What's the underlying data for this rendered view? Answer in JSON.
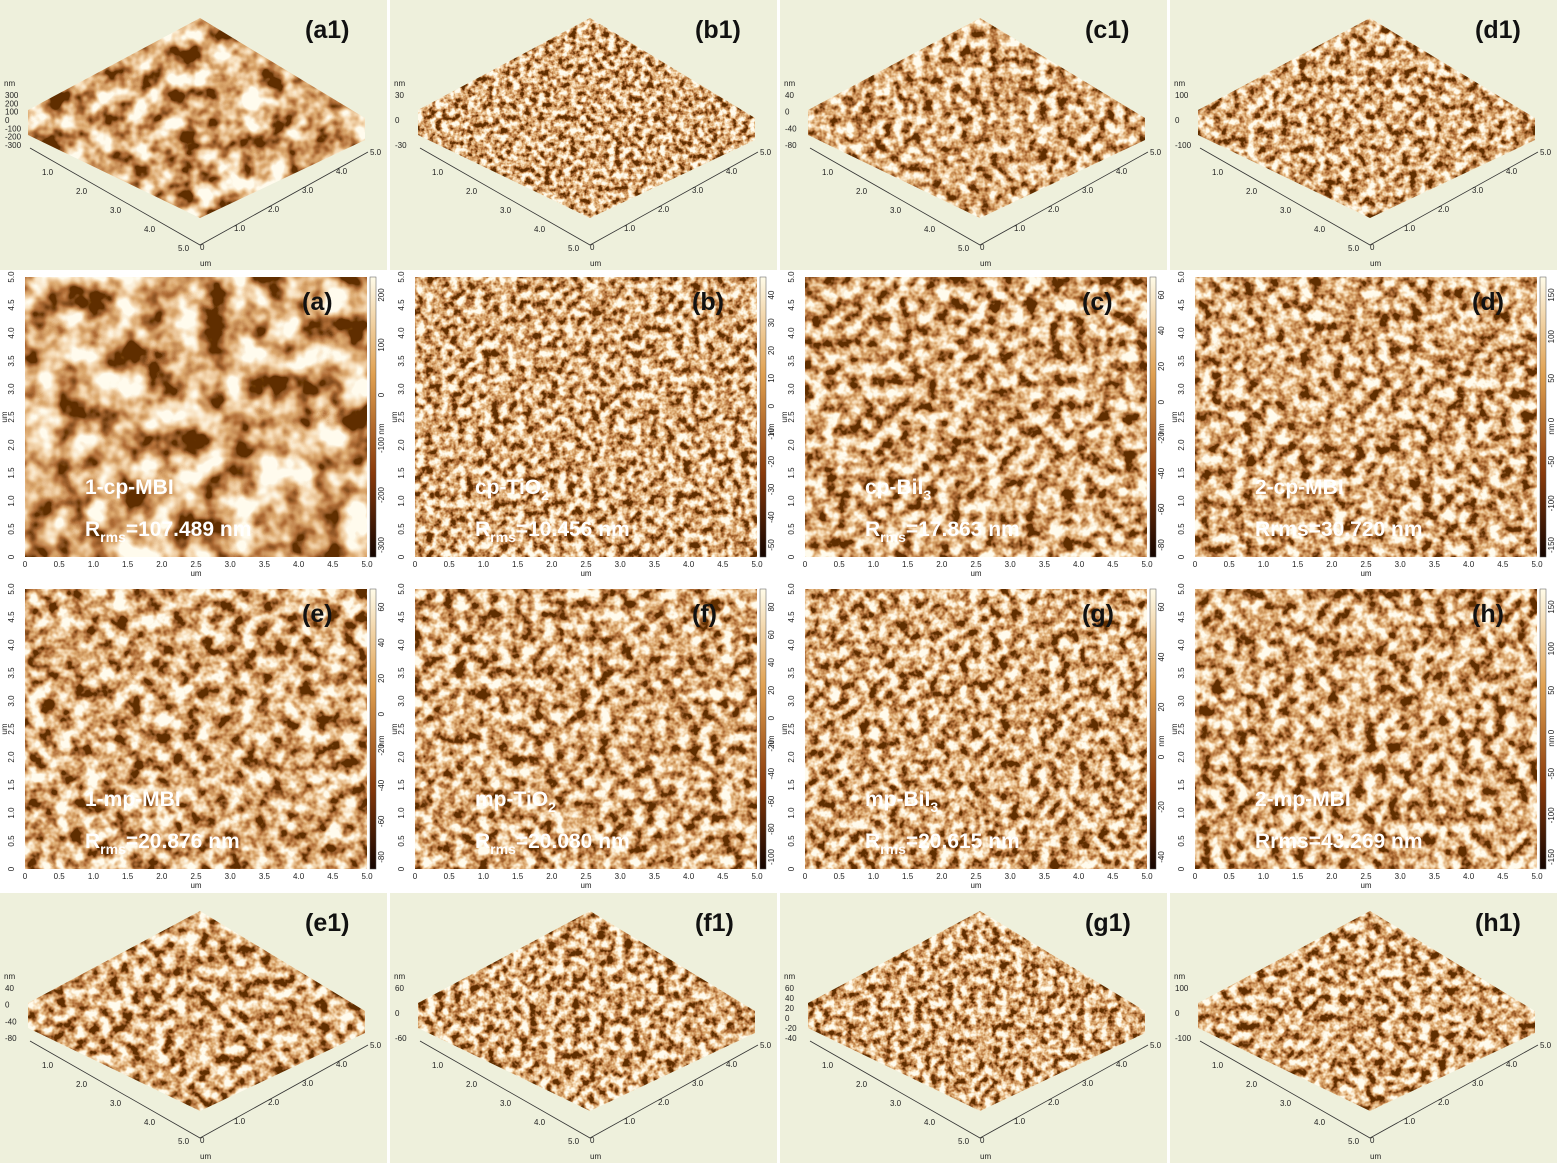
{
  "unit_um": "um",
  "unit_nm": "nm",
  "surface_ticks_left": [
    "1.0",
    "2.0",
    "3.0",
    "4.0",
    "5.0"
  ],
  "surface_ticks_right": [
    "0",
    "1.0",
    "2.0",
    "3.0",
    "4.0",
    "5.0"
  ],
  "map_ticks": [
    "0",
    "0.5",
    "1.0",
    "1.5",
    "2.0",
    "2.5",
    "3.0",
    "3.5",
    "4.0",
    "4.5",
    "5.0"
  ],
  "surfaces": [
    {
      "label": "(a1)",
      "z_ticks": [
        300,
        200,
        100,
        0,
        -100,
        -200,
        -300
      ]
    },
    {
      "label": "(b1)",
      "z_ticks": [
        30,
        0,
        -30
      ]
    },
    {
      "label": "(c1)",
      "z_ticks": [
        40,
        0,
        -40,
        -80
      ]
    },
    {
      "label": "(d1)",
      "z_ticks": [
        100,
        0,
        -100
      ]
    },
    {
      "label": "(e1)",
      "z_ticks": [
        40,
        0,
        -40,
        -80
      ]
    },
    {
      "label": "(f1)",
      "z_ticks": [
        60,
        0,
        -60
      ]
    },
    {
      "label": "(g1)",
      "z_ticks": [
        60,
        40,
        20,
        0,
        -20,
        -40
      ]
    },
    {
      "label": "(h1)",
      "z_ticks": [
        100,
        0,
        -100
      ]
    }
  ],
  "maps": [
    {
      "label": "(a)",
      "sample": [
        {
          "text": "1-cp-MBI"
        }
      ],
      "rrms": [
        {
          "text": "R"
        },
        {
          "sub": "rms"
        },
        {
          "text": "=107.489 nm"
        }
      ],
      "colorbar_ticks": [
        200,
        100,
        0,
        -100,
        -200,
        -300
      ]
    },
    {
      "label": "(b)",
      "sample": [
        {
          "text": "cp-TiO"
        },
        {
          "sub": "2"
        }
      ],
      "rrms": [
        {
          "text": "R"
        },
        {
          "sub": "rms"
        },
        {
          "text": "=10.456 nm"
        }
      ],
      "colorbar_ticks": [
        40,
        30,
        20,
        10,
        0,
        -10,
        -20,
        -30,
        -40,
        -50
      ]
    },
    {
      "label": "(c)",
      "sample": [
        {
          "text": "cp-BiI"
        },
        {
          "sub": "3"
        }
      ],
      "rrms": [
        {
          "text": "R"
        },
        {
          "sub": "rms"
        },
        {
          "text": "=17.863 nm"
        }
      ],
      "colorbar_ticks": [
        60,
        40,
        20,
        0,
        -20,
        -40,
        -60,
        -80
      ]
    },
    {
      "label": "(d)",
      "sample": [
        {
          "text": "2-cp-MBI"
        }
      ],
      "rrms": [
        {
          "text": "Rrms=30.720 nm"
        }
      ],
      "colorbar_ticks": [
        150,
        100,
        50,
        0,
        -50,
        -100,
        -150
      ]
    },
    {
      "label": "(e)",
      "sample": [
        {
          "text": "1-mp-MBI"
        }
      ],
      "rrms": [
        {
          "text": "R"
        },
        {
          "sub": "rms"
        },
        {
          "text": "=20.876 nm"
        }
      ],
      "colorbar_ticks": [
        60,
        40,
        20,
        0,
        -20,
        -40,
        -60,
        -80
      ]
    },
    {
      "label": "(f)",
      "sample": [
        {
          "text": "mp-TiO"
        },
        {
          "sub": "2"
        }
      ],
      "rrms": [
        {
          "text": "R"
        },
        {
          "sub": "rms"
        },
        {
          "text": "=20.080 nm"
        }
      ],
      "colorbar_ticks": [
        80,
        60,
        40,
        20,
        0,
        -20,
        -40,
        -60,
        -80,
        -100
      ]
    },
    {
      "label": "(g)",
      "sample": [
        {
          "text": "mp-BiI"
        },
        {
          "sub": "3"
        }
      ],
      "rrms": [
        {
          "text": "R"
        },
        {
          "sub": "rms"
        },
        {
          "text": "=20.615 nm"
        }
      ],
      "colorbar_ticks": [
        60,
        40,
        20,
        0,
        -20,
        -40
      ]
    },
    {
      "label": "(h)",
      "sample": [
        {
          "text": "2-mp-MBI"
        }
      ],
      "rrms": [
        {
          "text": "Rrms=43.269 nm"
        }
      ],
      "colorbar_ticks": [
        150,
        100,
        50,
        0,
        -50,
        -100,
        -150
      ]
    }
  ]
}
